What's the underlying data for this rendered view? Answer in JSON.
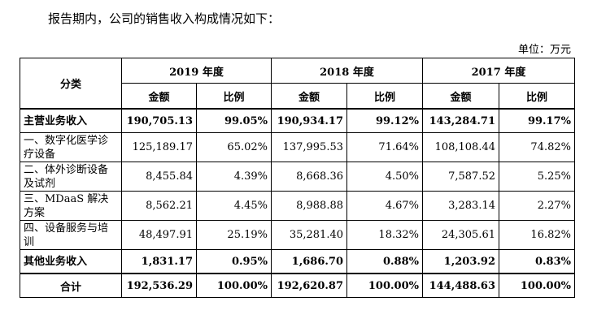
{
  "intro": "报告期内，公司的销售收入构成情况如下：",
  "unit": "单位：万元",
  "header": {
    "category": "分类",
    "years": [
      "2019 年度",
      "2018 年度",
      "2017 年度"
    ],
    "amount": "金额",
    "ratio": "比例"
  },
  "rows": [
    {
      "label": "主营业务收入",
      "v": [
        "190,705.13",
        "99.05%",
        "190,934.17",
        "99.12%",
        "143,284.71",
        "99.17%"
      ]
    },
    {
      "label": "一、数字化医学诊疗设备",
      "v": [
        "125,189.17",
        "65.02%",
        "137,995.53",
        "71.64%",
        "108,108.44",
        "74.82%"
      ]
    },
    {
      "label": "二、体外诊断设备及试剂",
      "v": [
        "8,455.84",
        "4.39%",
        "8,668.36",
        "4.50%",
        "7,587.52",
        "5.25%"
      ]
    },
    {
      "label": "三、MDaaS 解决方案",
      "v": [
        "8,562.21",
        "4.45%",
        "8,988.88",
        "4.67%",
        "3,283.14",
        "2.27%"
      ]
    },
    {
      "label": "四、设备服务与培训",
      "v": [
        "48,497.91",
        "25.19%",
        "35,281.40",
        "18.32%",
        "24,305.61",
        "16.82%"
      ]
    },
    {
      "label": "其他业务收入",
      "v": [
        "1,831.17",
        "0.95%",
        "1,686.70",
        "0.88%",
        "1,203.92",
        "0.83%"
      ]
    },
    {
      "label": "合计",
      "v": [
        "192,536.29",
        "100.00%",
        "192,620.87",
        "100.00%",
        "144,488.63",
        "100.00%"
      ]
    }
  ]
}
